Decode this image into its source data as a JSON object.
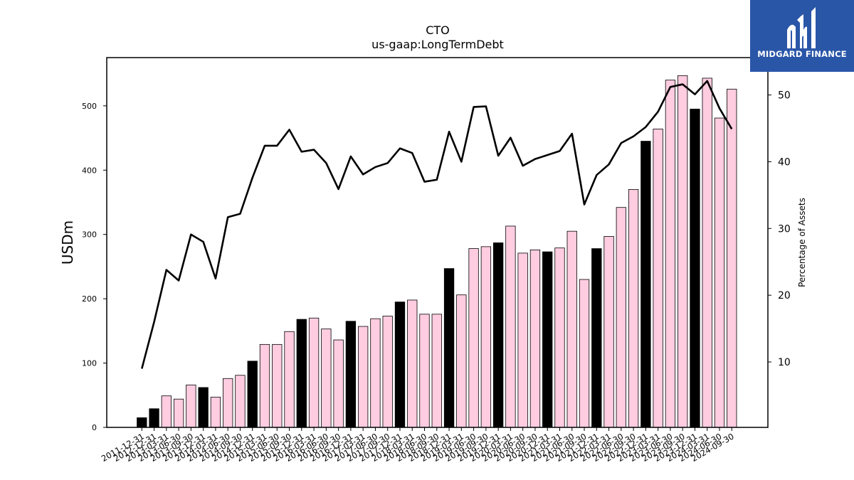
{
  "logo": {
    "text": "MIDGARD FINANCE",
    "color": "#2a56a8"
  },
  "chart_data": {
    "type": "bar",
    "title": "CTO",
    "subtitle": "us-gaap:LongTermDebt",
    "ylabel": "USDm",
    "y2label": "Percentage of Assets",
    "ylim": [
      0,
      575
    ],
    "y2lim": [
      0.2,
      55.6
    ],
    "yticks": [
      0,
      100,
      200,
      300,
      400,
      500
    ],
    "y2ticks": [
      10,
      20,
      30,
      40,
      50
    ],
    "colors": {
      "annual": "#000000",
      "quarterly": "#ffcce0",
      "line": "#000000"
    },
    "categories": [
      "2011-12-31",
      "2012-12-31",
      "2013-03-31",
      "2013-06-30",
      "2013-09-30",
      "2013-12-31",
      "2014-03-31",
      "2014-06-30",
      "2014-09-30",
      "2014-12-31",
      "2015-03-31",
      "2015-06-30",
      "2015-09-30",
      "2015-12-31",
      "2016-03-31",
      "2016-06-30",
      "2016-09-30",
      "2016-12-31",
      "2017-03-31",
      "2017-06-30",
      "2017-09-30",
      "2017-12-31",
      "2018-03-31",
      "2018-06-30",
      "2018-09-30",
      "2018-12-31",
      "2019-03-31",
      "2019-06-30",
      "2019-09-30",
      "2019-12-31",
      "2020-03-31",
      "2020-06-30",
      "2020-09-30",
      "2020-12-31",
      "2021-03-31",
      "2021-06-30",
      "2021-09-30",
      "2021-12-31",
      "2022-03-31",
      "2022-06-30",
      "2022-09-30",
      "2022-12-31",
      "2023-03-31",
      "2023-06-30",
      "2023-09-30",
      "2023-12-31",
      "2024-03-31",
      "2024-06-30",
      "2024-09-30"
    ],
    "annual": [
      true,
      true,
      false,
      false,
      false,
      true,
      false,
      false,
      false,
      true,
      false,
      false,
      false,
      true,
      false,
      false,
      false,
      true,
      false,
      false,
      false,
      true,
      false,
      false,
      false,
      true,
      false,
      false,
      false,
      true,
      false,
      false,
      false,
      true,
      false,
      false,
      false,
      true,
      false,
      false,
      false,
      true,
      false,
      false,
      false,
      true,
      false,
      false,
      false
    ],
    "series": [
      {
        "name": "LongTermDebt",
        "type": "bar",
        "values": [
          15,
          29,
          49,
          44,
          66,
          62,
          47,
          76,
          81,
          103,
          129,
          129,
          149,
          168,
          170,
          153,
          136,
          165,
          157,
          169,
          173,
          195,
          198,
          176,
          176,
          247,
          206,
          278,
          281,
          287,
          313,
          271,
          276,
          273,
          279,
          305,
          230,
          278,
          297,
          342,
          370,
          445,
          464,
          540,
          547,
          495,
          543,
          481,
          526
        ]
      },
      {
        "name": "Percentage of Assets",
        "type": "line",
        "axis": "right",
        "values": [
          9.0,
          16.0,
          23.8,
          22.2,
          29.1,
          28.0,
          22.5,
          31.7,
          32.2,
          37.6,
          42.4,
          42.4,
          44.8,
          41.5,
          41.8,
          39.8,
          35.9,
          40.8,
          38.1,
          39.2,
          39.8,
          42.0,
          41.3,
          37.0,
          37.3,
          44.5,
          40.0,
          48.2,
          48.3,
          40.9,
          43.6,
          39.4,
          40.4,
          41.0,
          41.6,
          44.2,
          33.6,
          38.0,
          39.6,
          42.8,
          43.8,
          45.2,
          47.5,
          51.2,
          51.6,
          50.1,
          52.1,
          48.0,
          44.9
        ]
      }
    ],
    "grid": false,
    "legend": "none"
  }
}
